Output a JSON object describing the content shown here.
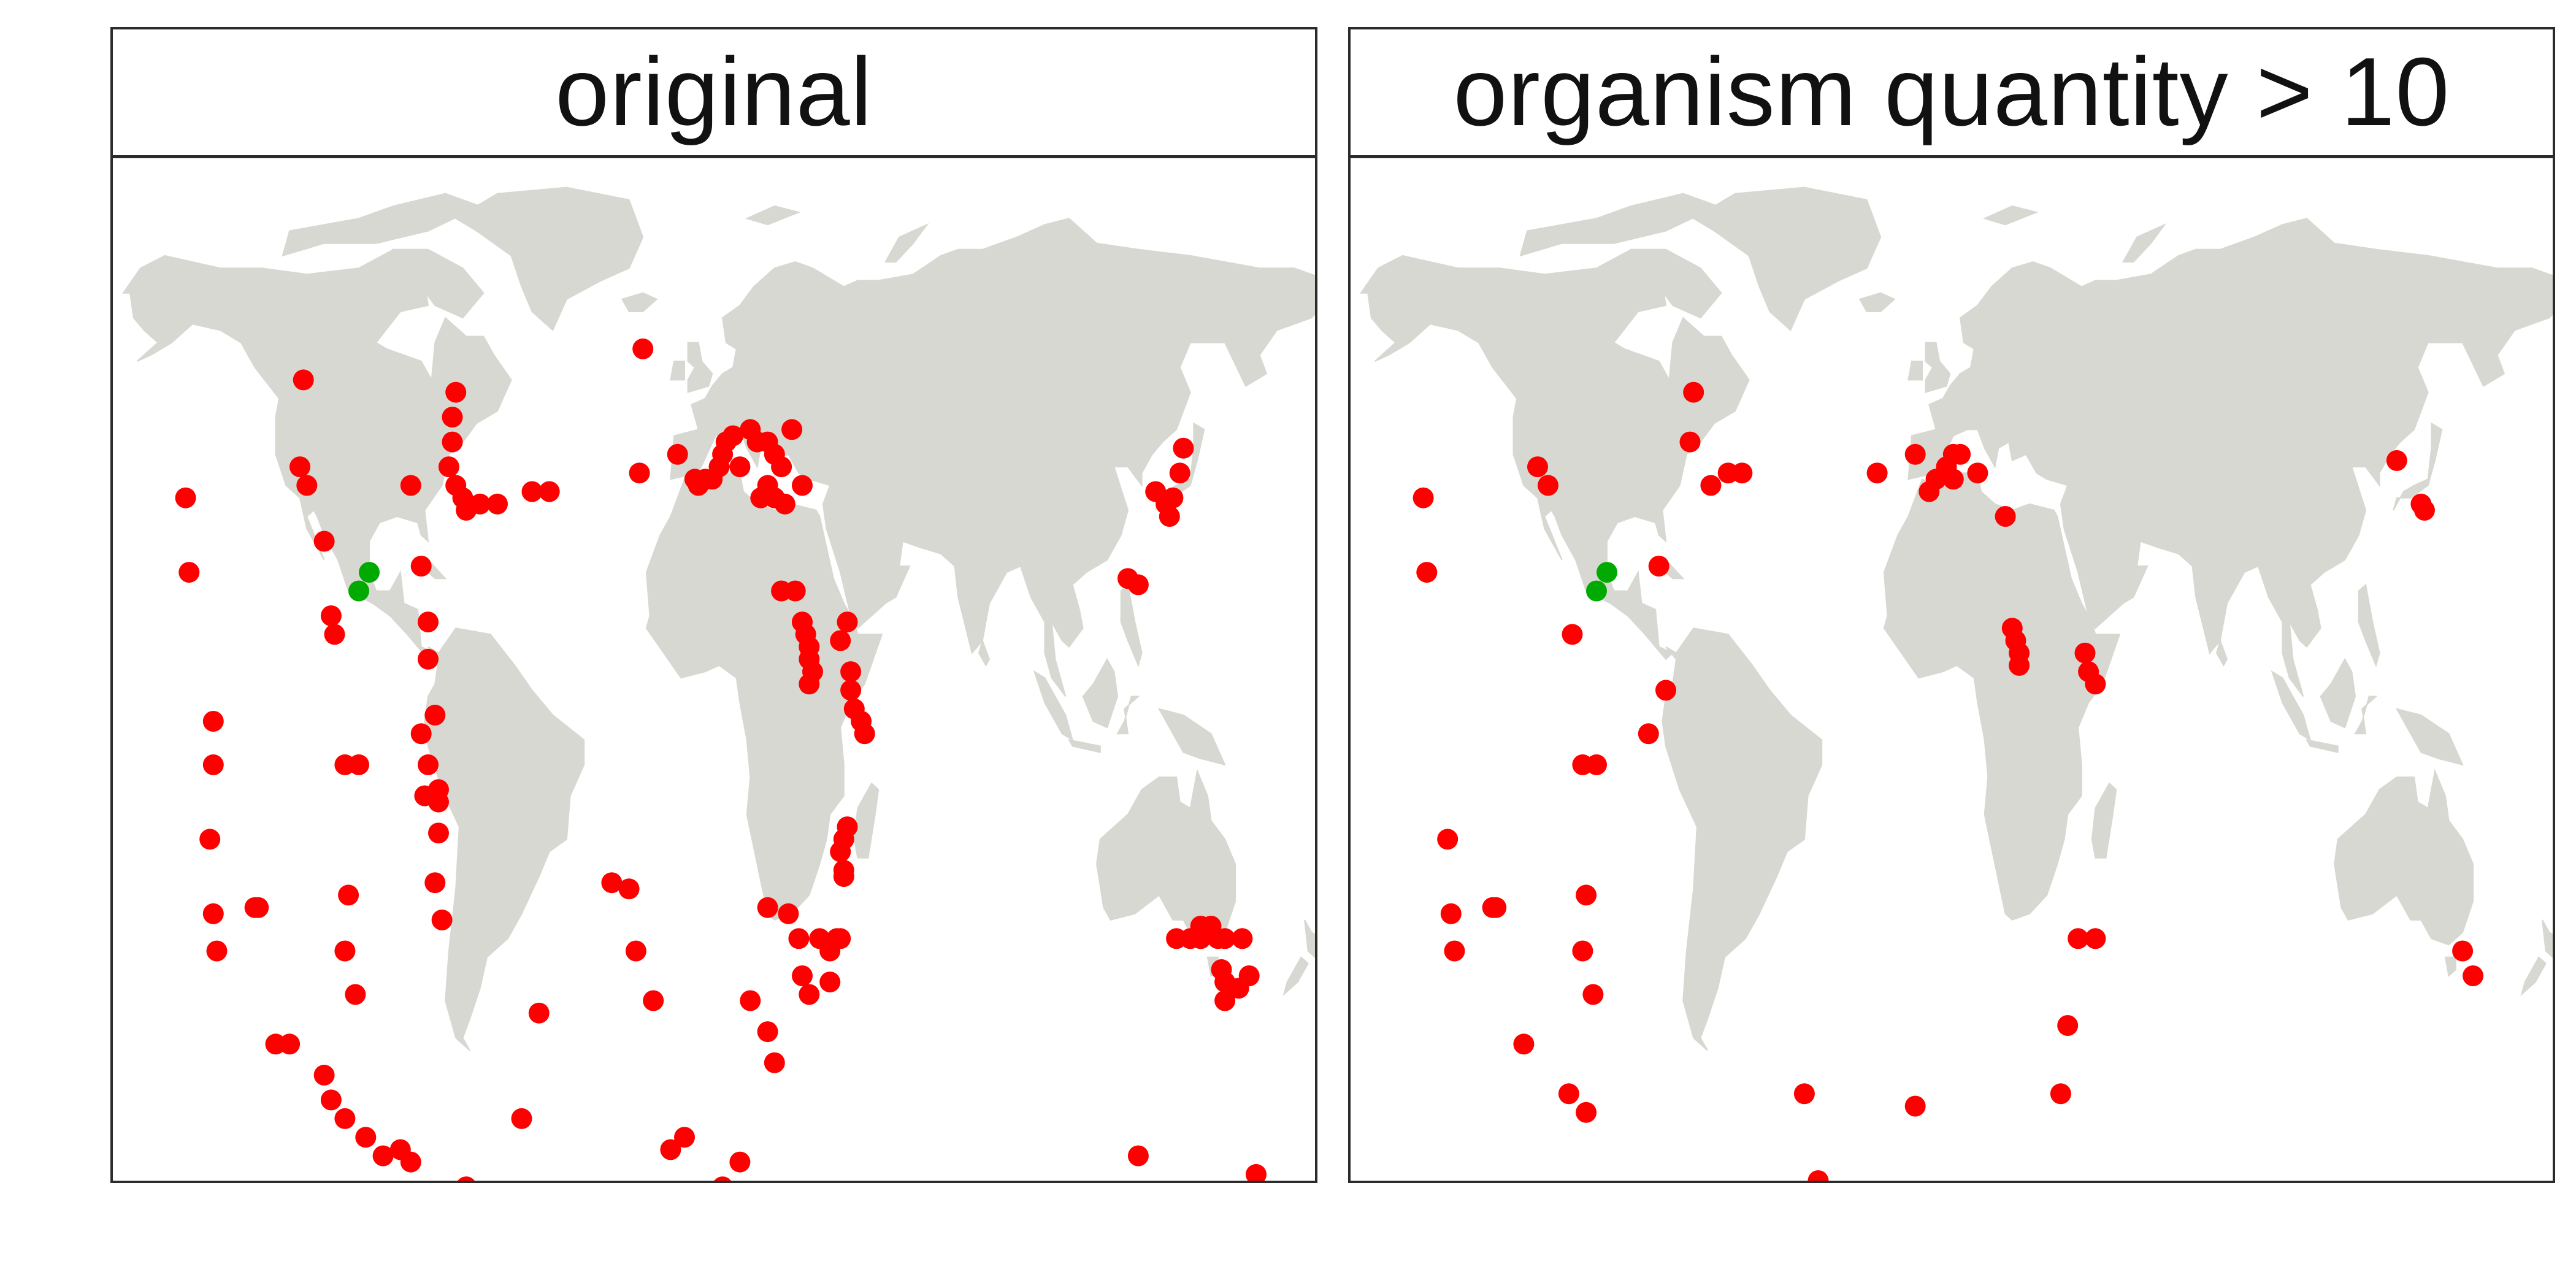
{
  "colors": {
    "land": "#d8d8d2",
    "point_red": "#ff0000",
    "point_green": "#00aa00",
    "frame": "#2b2b2b"
  },
  "panels": [
    {
      "title": "original",
      "points_red": [
        [
          -150,
          33
        ],
        [
          -149,
          21
        ],
        [
          -142,
          -3
        ],
        [
          -142,
          -10
        ],
        [
          -143,
          -22
        ],
        [
          -142,
          -34
        ],
        [
          -141,
          -40
        ],
        [
          -130,
          -33
        ],
        [
          -129,
          -33
        ],
        [
          -124,
          -55
        ],
        [
          -120,
          -55
        ],
        [
          -116,
          52
        ],
        [
          -117,
          38
        ],
        [
          -115,
          35
        ],
        [
          -110,
          26
        ],
        [
          -108,
          14
        ],
        [
          -107,
          11
        ],
        [
          -104,
          -10
        ],
        [
          -100,
          -10
        ],
        [
          -101,
          -47
        ],
        [
          -104,
          -40
        ],
        [
          -103,
          -31
        ],
        [
          -110,
          -60
        ],
        [
          -108,
          -64
        ],
        [
          -104,
          -67
        ],
        [
          -98,
          -70
        ],
        [
          -93,
          -73
        ],
        [
          -88,
          -72
        ],
        [
          -85,
          -74
        ],
        [
          -86,
          -89
        ],
        [
          -84,
          -88
        ],
        [
          -85,
          35
        ],
        [
          -82,
          22
        ],
        [
          -80,
          13
        ],
        [
          -80,
          7
        ],
        [
          -80,
          -10
        ],
        [
          -82,
          -5
        ],
        [
          -81,
          -15
        ],
        [
          -78,
          -2
        ],
        [
          -77,
          -14
        ],
        [
          -77,
          -16
        ],
        [
          -77,
          -21
        ],
        [
          -78,
          -29
        ],
        [
          -72,
          50
        ],
        [
          -73,
          46
        ],
        [
          -73,
          42
        ],
        [
          -74,
          38
        ],
        [
          -72,
          35
        ],
        [
          -70,
          33
        ],
        [
          -69,
          31
        ],
        [
          -65,
          32
        ],
        [
          -60,
          32
        ],
        [
          -50,
          34
        ],
        [
          -45,
          34
        ],
        [
          -76,
          -35
        ],
        [
          -69,
          -78
        ],
        [
          -71,
          -82
        ],
        [
          -71,
          -85
        ],
        [
          -72,
          -86
        ],
        [
          -72,
          -88
        ],
        [
          -74,
          -90
        ],
        [
          -48,
          -50
        ],
        [
          -53,
          -67
        ],
        [
          -27,
          -29
        ],
        [
          -22,
          -30
        ],
        [
          -19,
          37
        ],
        [
          -18,
          57
        ],
        [
          -8,
          40
        ],
        [
          -3,
          36
        ],
        [
          -2,
          35
        ],
        [
          0,
          36
        ],
        [
          2,
          36
        ],
        [
          4,
          38
        ],
        [
          5,
          40
        ],
        [
          6,
          42
        ],
        [
          8,
          43
        ],
        [
          10,
          38
        ],
        [
          13,
          44
        ],
        [
          15,
          42
        ],
        [
          18,
          42
        ],
        [
          20,
          40
        ],
        [
          22,
          38
        ],
        [
          18,
          35
        ],
        [
          16,
          33
        ],
        [
          20,
          33
        ],
        [
          23,
          32
        ],
        [
          25,
          44
        ],
        [
          28,
          35
        ],
        [
          22,
          18
        ],
        [
          26,
          18
        ],
        [
          28,
          13
        ],
        [
          29,
          11
        ],
        [
          30,
          9
        ],
        [
          30,
          7
        ],
        [
          31,
          5
        ],
        [
          30,
          3
        ],
        [
          -10,
          -72
        ],
        [
          -20,
          -40
        ],
        [
          -15,
          -48
        ],
        [
          -6,
          -70
        ],
        [
          5,
          -78
        ],
        [
          10,
          -74
        ],
        [
          15,
          -79
        ],
        [
          13,
          -48
        ],
        [
          18,
          -53
        ],
        [
          20,
          -58
        ],
        [
          18,
          -33
        ],
        [
          24,
          -34
        ],
        [
          27,
          -38
        ],
        [
          28,
          -44
        ],
        [
          30,
          -47
        ],
        [
          36,
          -40
        ],
        [
          33,
          -38
        ],
        [
          36,
          -45
        ],
        [
          38,
          -38
        ],
        [
          39,
          -38
        ],
        [
          40,
          -28
        ],
        [
          40,
          -27
        ],
        [
          39,
          -24
        ],
        [
          40,
          -22
        ],
        [
          41,
          -20
        ],
        [
          46,
          -5
        ],
        [
          45,
          -3
        ],
        [
          43,
          -1
        ],
        [
          42,
          2
        ],
        [
          42,
          5
        ],
        [
          39,
          10
        ],
        [
          41,
          13
        ],
        [
          138,
          41
        ],
        [
          130,
          34
        ],
        [
          135,
          33
        ],
        [
          137,
          37
        ],
        [
          134,
          30
        ],
        [
          133,
          32
        ],
        [
          125,
          19
        ],
        [
          122,
          20
        ],
        [
          150,
          -45
        ],
        [
          149,
          -43
        ],
        [
          155,
          -38
        ],
        [
          150,
          -38
        ],
        [
          148,
          -38
        ],
        [
          143,
          -36
        ],
        [
          143,
          -38
        ],
        [
          146,
          -36
        ],
        [
          140,
          -38
        ],
        [
          136,
          -38
        ],
        [
          154,
          -46
        ],
        [
          157,
          -44
        ],
        [
          150,
          -48
        ],
        [
          159,
          -76
        ],
        [
          158,
          -80
        ],
        [
          157,
          -85
        ],
        [
          125,
          -73
        ]
      ],
      "points_green": [
        [
          -100,
          18
        ],
        [
          -97,
          21
        ]
      ]
    },
    {
      "title": "organism quantity > 10",
      "points_red": [
        [
          -150,
          33
        ],
        [
          -149,
          21
        ],
        [
          -143,
          -22
        ],
        [
          -142,
          -34
        ],
        [
          -141,
          -40
        ],
        [
          -130,
          -33
        ],
        [
          -129,
          -33
        ],
        [
          -121,
          -55
        ],
        [
          -117,
          38
        ],
        [
          -114,
          35
        ],
        [
          -107,
          11
        ],
        [
          -104,
          -10
        ],
        [
          -100,
          -10
        ],
        [
          -101,
          -47
        ],
        [
          -104,
          -40
        ],
        [
          -103,
          -31
        ],
        [
          -108,
          -63
        ],
        [
          -103,
          -66
        ],
        [
          -85,
          -5
        ],
        [
          -80,
          2
        ],
        [
          -82,
          22
        ],
        [
          -72,
          50
        ],
        [
          -73,
          42
        ],
        [
          -67,
          35
        ],
        [
          -62,
          37
        ],
        [
          -58,
          37
        ],
        [
          -40,
          -63
        ],
        [
          -36,
          -77
        ],
        [
          -35,
          -82
        ],
        [
          -8,
          -65
        ],
        [
          -19,
          37
        ],
        [
          -8,
          40
        ],
        [
          -4,
          34
        ],
        [
          -2,
          36
        ],
        [
          1,
          38
        ],
        [
          3,
          36
        ],
        [
          3,
          40
        ],
        [
          5,
          40
        ],
        [
          10,
          37
        ],
        [
          18,
          30
        ],
        [
          20,
          12
        ],
        [
          21,
          10
        ],
        [
          22,
          8
        ],
        [
          22,
          6
        ],
        [
          41,
          8
        ],
        [
          42,
          5
        ],
        [
          44,
          3
        ],
        [
          36,
          -52
        ],
        [
          39,
          -38
        ],
        [
          44,
          -38
        ],
        [
          34,
          -63
        ],
        [
          131,
          39
        ],
        [
          139,
          31
        ],
        [
          138,
          32
        ],
        [
          150,
          -40
        ],
        [
          153,
          -44
        ]
      ],
      "points_green": [
        [
          -100,
          18
        ],
        [
          -97,
          21
        ]
      ]
    }
  ]
}
